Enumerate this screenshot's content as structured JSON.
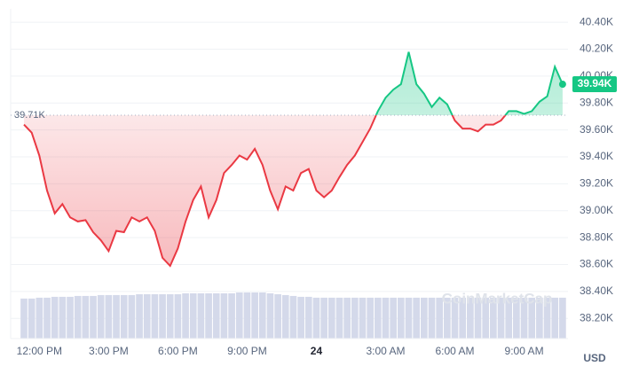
{
  "chart_data": {
    "type": "line",
    "categories": [
      null,
      null,
      "12:00 PM",
      null,
      null,
      null,
      null,
      null,
      null,
      null,
      null,
      "3:00 PM",
      null,
      null,
      null,
      null,
      null,
      null,
      null,
      null,
      "6:00 PM",
      null,
      null,
      null,
      null,
      null,
      null,
      null,
      null,
      "9:00 PM",
      null,
      null,
      null,
      null,
      null,
      null,
      null,
      null,
      "24",
      null,
      null,
      null,
      null,
      null,
      null,
      null,
      null,
      "3:00 AM",
      null,
      null,
      null,
      null,
      null,
      null,
      null,
      null,
      "6:00 AM",
      null,
      null,
      null,
      null,
      null,
      null,
      null,
      null,
      "9:00 AM",
      null,
      null,
      null,
      null,
      null
    ],
    "values": [
      39640,
      39580,
      39410,
      39150,
      38980,
      39050,
      38950,
      38920,
      38930,
      38840,
      38780,
      38700,
      38850,
      38840,
      38950,
      38920,
      38950,
      38850,
      38650,
      38590,
      38720,
      38920,
      39080,
      39180,
      38950,
      39080,
      39280,
      39340,
      39410,
      39380,
      39460,
      39340,
      39150,
      39010,
      39180,
      39150,
      39280,
      39310,
      39150,
      39100,
      39150,
      39250,
      39340,
      39410,
      39510,
      39610,
      39740,
      39840,
      39900,
      39940,
      40180,
      39940,
      39870,
      39770,
      39840,
      39790,
      39670,
      39610,
      39610,
      39590,
      39640,
      39640,
      39670,
      39740,
      39740,
      39720,
      39740,
      39810,
      39850,
      40070,
      39940
    ],
    "volume": [
      46,
      46,
      47,
      47,
      48,
      48,
      48,
      49,
      49,
      49,
      50,
      50,
      50,
      50,
      50,
      51,
      51,
      51,
      51,
      51,
      51,
      52,
      52,
      52,
      52,
      52,
      52,
      52,
      53,
      53,
      53,
      53,
      52,
      51,
      50,
      49,
      48,
      48,
      47,
      47,
      47,
      47,
      47,
      47,
      47,
      47,
      47,
      47,
      47,
      47,
      47,
      47,
      47,
      47,
      47,
      47,
      47,
      47,
      47,
      47,
      47,
      47,
      47,
      47,
      47,
      47,
      47,
      47,
      47,
      47,
      47
    ],
    "baseline": {
      "value": 39710,
      "label": "39.71K"
    },
    "last_price_label": "39.94K",
    "up_color": "#16c784",
    "down_color": "#ea3943",
    "volume_color": "#d4d9ea",
    "ylim": [
      38050,
      40500
    ],
    "yticks": [
      {
        "value": 40400,
        "label": "40.40K"
      },
      {
        "value": 40200,
        "label": "40.20K"
      },
      {
        "value": 40000,
        "label": "40.00K"
      },
      {
        "value": 39800,
        "label": "39.80K"
      },
      {
        "value": 39600,
        "label": "39.60K"
      },
      {
        "value": 39400,
        "label": "39.40K"
      },
      {
        "value": 39200,
        "label": "39.20K"
      },
      {
        "value": 39000,
        "label": "39.00K"
      },
      {
        "value": 38800,
        "label": "38.80K"
      },
      {
        "value": 38600,
        "label": "38.60K"
      },
      {
        "value": 38400,
        "label": "38.40K"
      },
      {
        "value": 38200,
        "label": "38.20K"
      }
    ],
    "grid": true,
    "watermark": "CoinMarketCap",
    "currency": "USD"
  }
}
